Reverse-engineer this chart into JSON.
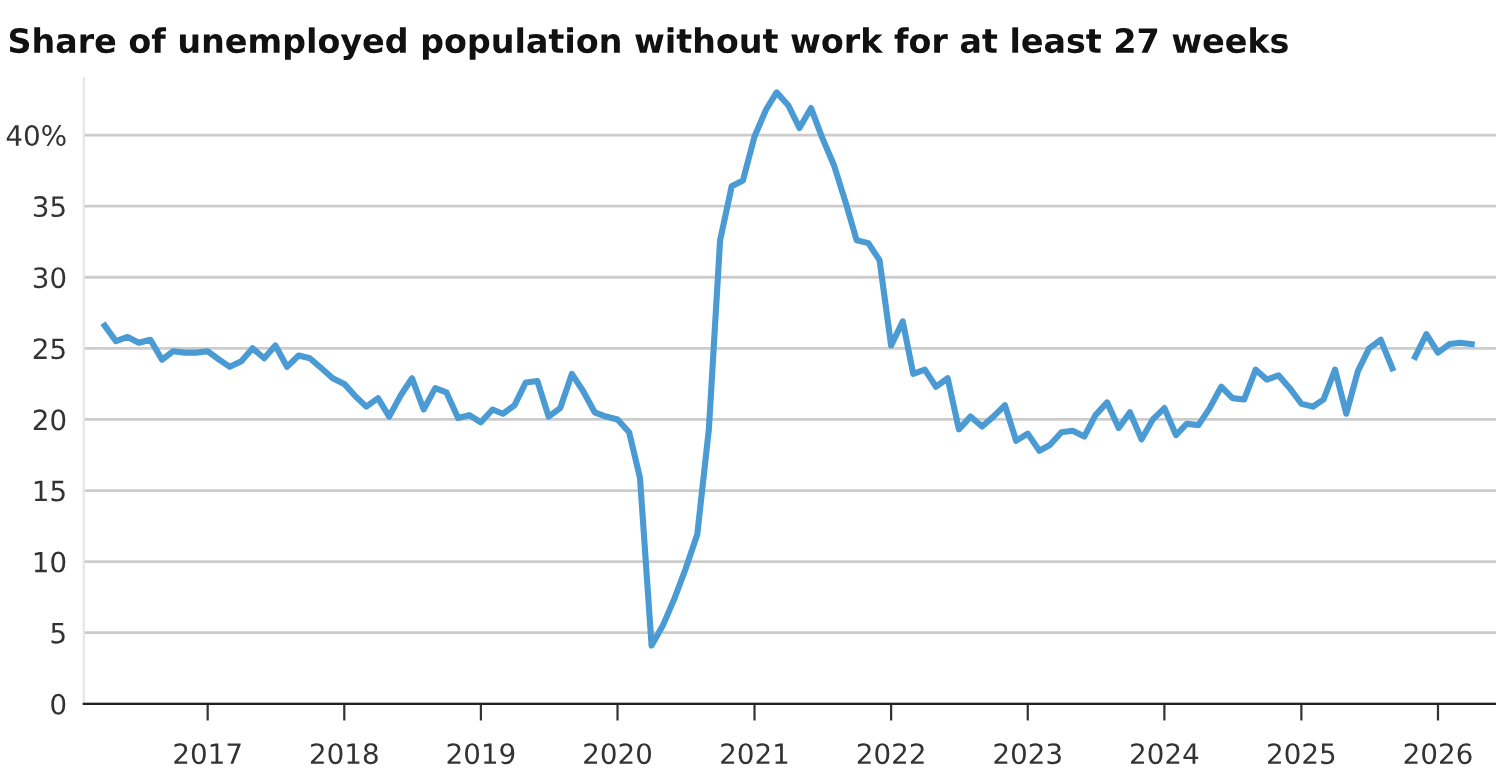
{
  "chart_data": {
    "type": "line",
    "title": "Share of unemployed population without work for at least 27 weeks",
    "series": [
      {
        "color": "#4a9ad4",
        "x": [
          "2016-04",
          "2016-05",
          "2016-06",
          "2016-07",
          "2016-08",
          "2016-09",
          "2016-10",
          "2016-11",
          "2016-12",
          "2017-01",
          "2017-02",
          "2017-03",
          "2017-04",
          "2017-05",
          "2017-06",
          "2017-07",
          "2017-08",
          "2017-09",
          "2017-10",
          "2017-11",
          "2017-12",
          "2018-01",
          "2018-02",
          "2018-03",
          "2018-04",
          "2018-05",
          "2018-06",
          "2018-07",
          "2018-08",
          "2018-09",
          "2018-10",
          "2018-11",
          "2018-12",
          "2019-01",
          "2019-02",
          "2019-03",
          "2019-04",
          "2019-05",
          "2019-06",
          "2019-07",
          "2019-08",
          "2019-09",
          "2019-10",
          "2019-11",
          "2019-12",
          "2020-01",
          "2020-02",
          "2020-03",
          "2020-04",
          "2020-05",
          "2020-06",
          "2020-07",
          "2020-08",
          "2020-09",
          "2020-10",
          "2020-11",
          "2020-12",
          "2021-01",
          "2021-02",
          "2021-03",
          "2021-04",
          "2021-05",
          "2021-06",
          "2021-07",
          "2021-08",
          "2021-09",
          "2021-10",
          "2021-11",
          "2021-12",
          "2022-01",
          "2022-02",
          "2022-03",
          "2022-04",
          "2022-05",
          "2022-06",
          "2022-07",
          "2022-08",
          "2022-09",
          "2022-10",
          "2022-11",
          "2022-12",
          "2023-01",
          "2023-02",
          "2023-03",
          "2023-04",
          "2023-05",
          "2023-06",
          "2023-07",
          "2023-08",
          "2023-09",
          "2023-10",
          "2023-11",
          "2023-12",
          "2024-01",
          "2024-02",
          "2024-03",
          "2024-04",
          "2024-05",
          "2024-06",
          "2024-07",
          "2024-08",
          "2024-09",
          "2024-10",
          "2024-11",
          "2024-12",
          "2025-01",
          "2025-02",
          "2025-03",
          "2025-04",
          "2025-05",
          "2025-06",
          "2025-07",
          "2025-08",
          "2025-09",
          "2025-10",
          "2025-11",
          "2025-12",
          "2026-01",
          "2026-02",
          "2026-03",
          "2026-04"
        ],
        "values": [
          26.6,
          25.5,
          25.8,
          25.4,
          25.6,
          24.2,
          24.8,
          24.7,
          24.7,
          24.8,
          24.2,
          23.7,
          24.1,
          25.0,
          24.3,
          25.2,
          23.7,
          24.5,
          24.3,
          23.6,
          22.9,
          22.5,
          21.6,
          20.9,
          21.5,
          20.2,
          21.7,
          22.9,
          20.7,
          22.2,
          21.9,
          20.1,
          20.3,
          19.8,
          20.7,
          20.4,
          21.0,
          22.6,
          22.7,
          20.2,
          20.8,
          23.2,
          22.0,
          20.5,
          20.2,
          20.0,
          19.1,
          15.9,
          4.1,
          5.5,
          7.4,
          9.5,
          11.9,
          19.3,
          32.6,
          36.4,
          36.8,
          39.9,
          41.8,
          43.0,
          42.1,
          40.5,
          41.9,
          39.8,
          37.9,
          35.3,
          32.6,
          32.4,
          31.2,
          25.2,
          26.9,
          23.2,
          23.5,
          22.3,
          22.9,
          19.3,
          20.2,
          19.5,
          20.2,
          21.0,
          18.5,
          19.0,
          17.8,
          18.2,
          19.1,
          19.2,
          18.8,
          20.3,
          21.2,
          19.4,
          20.5,
          18.6,
          20.0,
          20.8,
          18.9,
          19.7,
          19.6,
          20.8,
          22.3,
          21.5,
          21.4,
          23.5,
          22.8,
          23.1,
          22.2,
          21.1,
          20.9,
          21.4,
          23.5,
          20.4,
          23.4,
          25.0,
          25.6,
          23.6,
          null,
          24.4,
          26.0,
          24.7,
          25.3,
          25.4,
          25.3
        ]
      }
    ],
    "xlim": [
      "2016-02-05",
      "2026-06-05"
    ],
    "xticks": [
      "2017",
      "2018",
      "2019",
      "2020",
      "2021",
      "2022",
      "2023",
      "2024",
      "2025",
      "2026"
    ],
    "ylim": [
      0,
      44
    ],
    "yticks": [
      0,
      5,
      10,
      15,
      20,
      25,
      30,
      35,
      {
        "value": 40,
        "label": "40%"
      }
    ],
    "grid": "y",
    "marker": "none",
    "line_style": "solid"
  }
}
